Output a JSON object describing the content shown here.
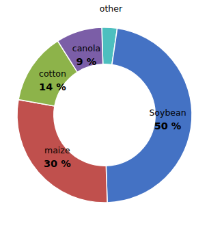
{
  "chart_data": {
    "type": "pie",
    "categories": [
      "other",
      "Soybean",
      "maize",
      "cotton",
      "canola"
    ],
    "values": [
      3,
      50,
      30,
      14,
      9
    ],
    "colors": [
      "#4DBFBF",
      "#4472C4",
      "#C0504D",
      "#8DB34A",
      "#7B5EA7"
    ],
    "data_labels": true,
    "value_labels": [
      null,
      "50 %",
      "30 %",
      "14 %",
      "9 %"
    ]
  }
}
